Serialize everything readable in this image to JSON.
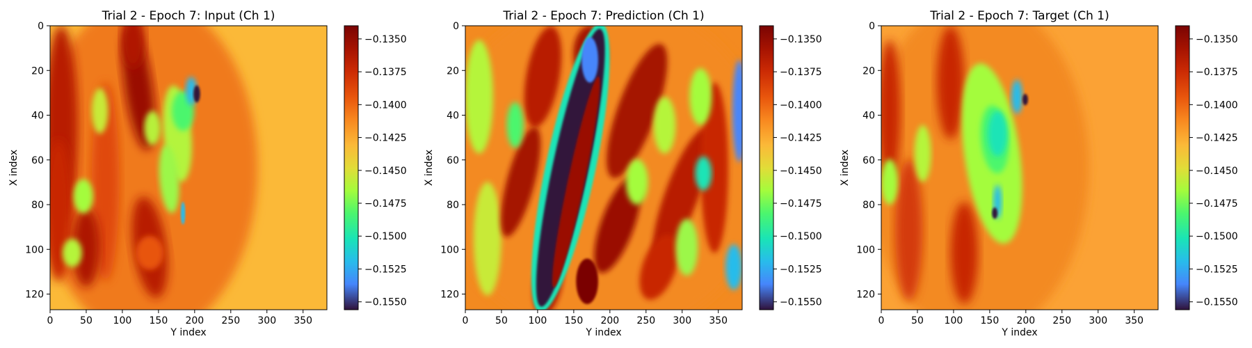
{
  "chart_data": [
    {
      "type": "heatmap",
      "title": "Trial 2 - Epoch 7: Input (Ch 1)",
      "xlabel": "Y index",
      "ylabel": "X index",
      "x_ticks": [
        0,
        50,
        100,
        150,
        200,
        250,
        300,
        350
      ],
      "y_ticks": [
        0,
        20,
        40,
        60,
        80,
        100,
        120
      ],
      "xlim": [
        0,
        383
      ],
      "ylim": [
        127,
        0
      ],
      "colorbar_ticks": [
        "−0.1350",
        "−0.1375",
        "−0.1400",
        "−0.1425",
        "−0.1450",
        "−0.1475",
        "−0.1500",
        "−0.1525",
        "−0.1550"
      ],
      "colorbar_values": [
        -0.135,
        -0.1375,
        -0.14,
        -0.1425,
        -0.145,
        -0.1475,
        -0.15,
        -0.1525,
        -0.155
      ],
      "vmin": -0.1556,
      "vmax": -0.134,
      "colormap": "turbo",
      "grid": false
    },
    {
      "type": "heatmap",
      "title": "Trial 2 - Epoch 7: Prediction (Ch 1)",
      "xlabel": "Y index",
      "ylabel": "X index",
      "x_ticks": [
        0,
        50,
        100,
        150,
        200,
        250,
        300,
        350
      ],
      "y_ticks": [
        0,
        20,
        40,
        60,
        80,
        100,
        120
      ],
      "xlim": [
        0,
        383
      ],
      "ylim": [
        127,
        0
      ],
      "colorbar_ticks": [
        "−0.1350",
        "−0.1375",
        "−0.1400",
        "−0.1425",
        "−0.1450",
        "−0.1475",
        "−0.1500",
        "−0.1525",
        "−0.1550"
      ],
      "colorbar_values": [
        -0.135,
        -0.1375,
        -0.14,
        -0.1425,
        -0.145,
        -0.1475,
        -0.15,
        -0.1525,
        -0.155
      ],
      "vmin": -0.1556,
      "vmax": -0.134,
      "colormap": "turbo",
      "grid": false
    },
    {
      "type": "heatmap",
      "title": "Trial 2 - Epoch 7: Target (Ch 1)",
      "xlabel": "Y index",
      "ylabel": "X index",
      "x_ticks": [
        0,
        50,
        100,
        150,
        200,
        250,
        300,
        350
      ],
      "y_ticks": [
        0,
        20,
        40,
        60,
        80,
        100,
        120
      ],
      "xlim": [
        0,
        383
      ],
      "ylim": [
        127,
        0
      ],
      "colorbar_ticks": [
        "−0.1350",
        "−0.1375",
        "−0.1400",
        "−0.1425",
        "−0.1450",
        "−0.1475",
        "−0.1500",
        "−0.1525",
        "−0.1550"
      ],
      "colorbar_values": [
        -0.135,
        -0.1375,
        -0.14,
        -0.1425,
        -0.145,
        -0.1475,
        -0.15,
        -0.1525,
        -0.155
      ],
      "vmin": -0.1556,
      "vmax": -0.134,
      "colormap": "turbo",
      "grid": false
    }
  ]
}
